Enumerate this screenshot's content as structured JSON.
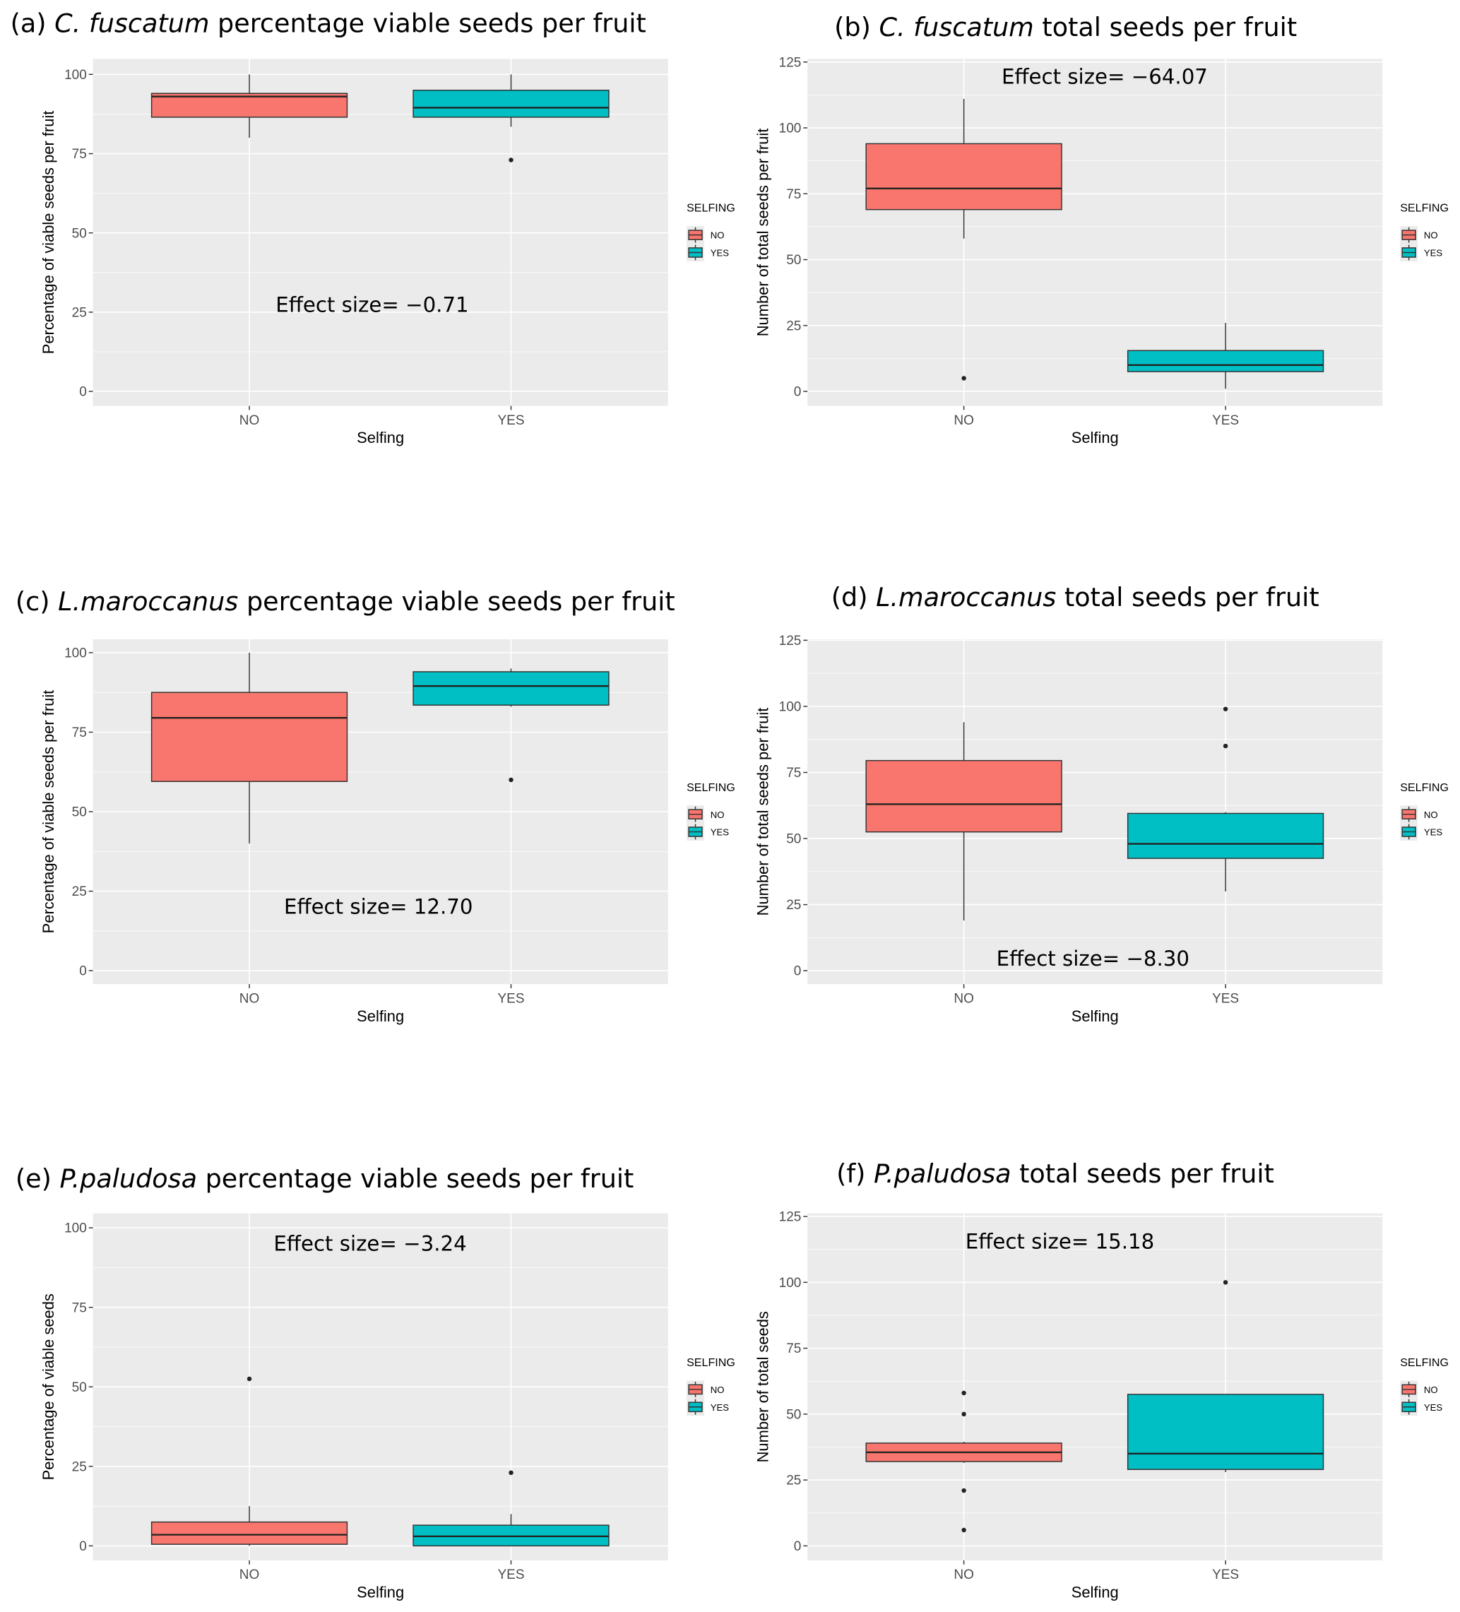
{
  "colors": {
    "no": "#F8766D",
    "yes": "#00BFC4",
    "panel_bg": "#EBEBEB",
    "grid": "#FFFFFF"
  },
  "chart_data": [
    {
      "type": "box",
      "id": "a",
      "title_prefix": "(a) ",
      "title_species": "C. fuscatum",
      "title_suffix": " percentage viable seeds per fruit",
      "xlabel": "Selfing",
      "ylabel": "Percentage of viable seeds per fruit",
      "ylim": [
        0,
        100
      ],
      "yticks": [
        "0",
        "25",
        "50",
        "75",
        "100"
      ],
      "categories": [
        "NO",
        "YES"
      ],
      "legend_title": "SELFING",
      "legend": [
        "NO",
        "YES"
      ],
      "legend_position": "right",
      "annotation": "Effect size= −0.71",
      "boxes": [
        {
          "group": "NO",
          "whisker_low": 80,
          "q1": 86.5,
          "median": 93,
          "q3": 94,
          "whisker_high": 100,
          "outliers": []
        },
        {
          "group": "YES",
          "whisker_low": 83.5,
          "q1": 86.5,
          "median": 89.5,
          "q3": 95,
          "whisker_high": 100,
          "outliers": [
            73
          ]
        }
      ]
    },
    {
      "type": "box",
      "id": "b",
      "title_prefix": "(b) ",
      "title_species": "C. fuscatum",
      "title_suffix": " total seeds per fruit",
      "xlabel": "Selfing",
      "ylabel": "Number of total seeds per fruit",
      "ylim": [
        0,
        125
      ],
      "yticks": [
        "0",
        "25",
        "50",
        "75",
        "100",
        "125"
      ],
      "categories": [
        "NO",
        "YES"
      ],
      "legend_title": "SELFING",
      "legend": [
        "NO",
        "YES"
      ],
      "legend_position": "right",
      "annotation": "Effect size= −64.07",
      "boxes": [
        {
          "group": "NO",
          "whisker_low": 58,
          "q1": 69,
          "median": 77,
          "q3": 94,
          "whisker_high": 111,
          "outliers": [
            5
          ]
        },
        {
          "group": "YES",
          "whisker_low": 1,
          "q1": 7.5,
          "median": 10,
          "q3": 15.5,
          "whisker_high": 26,
          "outliers": []
        }
      ]
    },
    {
      "type": "box",
      "id": "c",
      "title_prefix": "(c) ",
      "title_species": "L.maroccanus",
      "title_suffix": " percentage viable seeds per fruit",
      "xlabel": "Selfing",
      "ylabel": "Percentage of viable seeds per fruit",
      "ylim": [
        0,
        100
      ],
      "yticks": [
        "0",
        "25",
        "50",
        "75",
        "100"
      ],
      "categories": [
        "NO",
        "YES"
      ],
      "legend_title": "SELFING",
      "legend": [
        "NO",
        "YES"
      ],
      "legend_position": "right",
      "annotation": "Effect size= 12.70",
      "boxes": [
        {
          "group": "NO",
          "whisker_low": 40,
          "q1": 59.5,
          "median": 79.5,
          "q3": 87.5,
          "whisker_high": 100,
          "outliers": []
        },
        {
          "group": "YES",
          "whisker_low": 83,
          "q1": 83.5,
          "median": 89.5,
          "q3": 94,
          "whisker_high": 95,
          "outliers": [
            60
          ]
        }
      ]
    },
    {
      "type": "box",
      "id": "d",
      "title_prefix": "(d) ",
      "title_species": "L.maroccanus",
      "title_suffix": " total seeds per fruit",
      "xlabel": "Selfing",
      "ylabel": "Number of total seeds per fruit",
      "ylim": [
        0,
        125
      ],
      "yticks": [
        "0",
        "25",
        "50",
        "75",
        "100",
        "125"
      ],
      "categories": [
        "NO",
        "YES"
      ],
      "legend_title": "SELFING",
      "legend": [
        "NO",
        "YES"
      ],
      "legend_position": "right",
      "annotation": "Effect size= −8.30",
      "boxes": [
        {
          "group": "NO",
          "whisker_low": 19,
          "q1": 52.5,
          "median": 63,
          "q3": 79.5,
          "whisker_high": 94,
          "outliers": []
        },
        {
          "group": "YES",
          "whisker_low": 30,
          "q1": 42.5,
          "median": 48,
          "q3": 59.5,
          "whisker_high": 60,
          "outliers": [
            85,
            99
          ]
        }
      ]
    },
    {
      "type": "box",
      "id": "e",
      "title_prefix": "(e) ",
      "title_species": "P.paludosa",
      "title_suffix": " percentage viable seeds per fruit",
      "xlabel": "Selfing",
      "ylabel": "Percentage of viable seeds",
      "ylim": [
        0,
        100
      ],
      "yticks": [
        "0",
        "25",
        "50",
        "75",
        "100"
      ],
      "categories": [
        "NO",
        "YES"
      ],
      "legend_title": "SELFING",
      "legend": [
        "NO",
        "YES"
      ],
      "legend_position": "right",
      "annotation": "Effect size= −3.24",
      "boxes": [
        {
          "group": "NO",
          "whisker_low": 0,
          "q1": 0.5,
          "median": 3.5,
          "q3": 7.5,
          "whisker_high": 12.5,
          "outliers": [
            52.5
          ]
        },
        {
          "group": "YES",
          "whisker_low": 0,
          "q1": 0,
          "median": 3,
          "q3": 6.5,
          "whisker_high": 10,
          "outliers": [
            23
          ]
        }
      ]
    },
    {
      "type": "box",
      "id": "f",
      "title_prefix": "(f) ",
      "title_species": "P.paludosa",
      "title_suffix": " total seeds per fruit",
      "xlabel": "Selfing",
      "ylabel": "Number of total seeds",
      "ylim": [
        0,
        125
      ],
      "yticks": [
        "0",
        "25",
        "50",
        "75",
        "100",
        "125"
      ],
      "categories": [
        "NO",
        "YES"
      ],
      "legend_title": "SELFING",
      "legend": [
        "NO",
        "YES"
      ],
      "legend_position": "right",
      "annotation": "Effect size= 15.18",
      "boxes": [
        {
          "group": "NO",
          "whisker_low": 31.5,
          "q1": 32,
          "median": 35.5,
          "q3": 39,
          "whisker_high": 39.5,
          "outliers": [
            58,
            50,
            21,
            6
          ]
        },
        {
          "group": "YES",
          "whisker_low": 28,
          "q1": 29,
          "median": 35,
          "q3": 57.5,
          "whisker_high": 57.5,
          "outliers": [
            100
          ]
        }
      ]
    }
  ]
}
